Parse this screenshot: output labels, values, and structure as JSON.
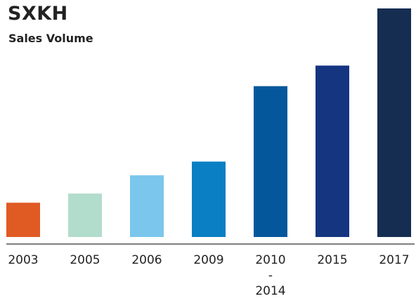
{
  "chart_data": {
    "type": "bar",
    "title": "SXKH",
    "subtitle": "Sales Volume",
    "categories": [
      [
        "2003"
      ],
      [
        "2005"
      ],
      [
        "2006"
      ],
      [
        "2009"
      ],
      [
        "2010",
        "-",
        "2014"
      ],
      [
        "2015"
      ],
      [
        "2017"
      ]
    ],
    "values": [
      15,
      19,
      27,
      33,
      66,
      75,
      100
    ],
    "value_scale": "relative (no y-axis shown, relative to 2017 = 100)",
    "bar_colors": [
      "#e05a24",
      "#b2dccc",
      "#7ac6ed",
      "#0a7fc4",
      "#05579c",
      "#153580",
      "#162d52"
    ],
    "axis_color": "#555555",
    "xlabel": "",
    "ylabel": "",
    "grid": false,
    "legend": "none"
  }
}
